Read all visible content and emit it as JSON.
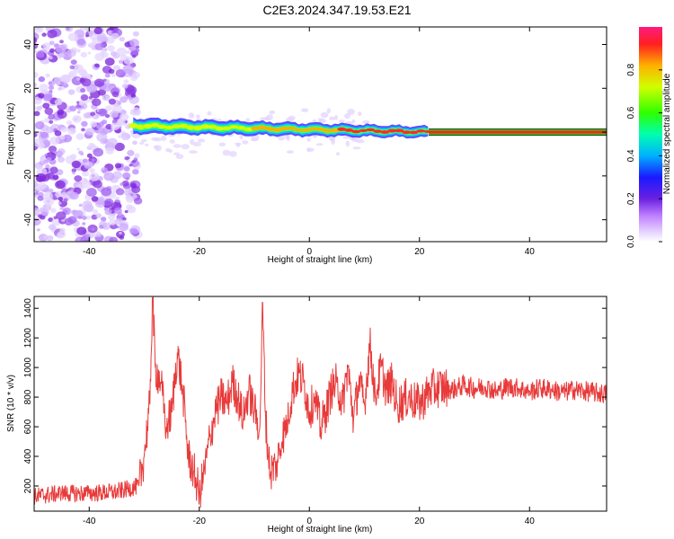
{
  "title": "C2E3.2024.347.19.53.E21",
  "colors": {
    "signal": "#e83a3a",
    "axis": "#000000",
    "frame_bg": "#ffffff"
  },
  "chart_data": [
    {
      "type": "heatmap",
      "xlabel": "Height of straight line (km)",
      "ylabel": "Frequency (Hz)",
      "xlim": [
        -50,
        54
      ],
      "ylim": [
        -50,
        48
      ],
      "x_ticks": [
        "-40",
        "-20",
        "0",
        "20",
        "40"
      ],
      "y_ticks": [
        "-40",
        "-20",
        "0",
        "20",
        "40"
      ],
      "colorbar": {
        "label": "Normalized spectral amplitude",
        "range": [
          0,
          1
        ],
        "ticks": [
          "0.0",
          "0.2",
          "0.4",
          "0.6",
          "0.8"
        ]
      },
      "regions": [
        {
          "description": "broadband noise",
          "x_range": [
            -50,
            -32
          ],
          "freq_range": [
            -50,
            48
          ],
          "amplitude": 0.1
        },
        {
          "description": "signal band",
          "x_range": [
            -32,
            54
          ],
          "freq_center": 0,
          "amplitude_range": [
            0.35,
            1.0
          ]
        }
      ]
    },
    {
      "type": "line",
      "xlabel": "Height of straight line (km)",
      "ylabel": "SNR (10 * v/v)",
      "xlim": [
        -50,
        54
      ],
      "ylim": [
        30,
        1480
      ],
      "x_ticks": [
        "-40",
        "-20",
        "0",
        "20",
        "40"
      ],
      "y_ticks": [
        "200",
        "400",
        "600",
        "800",
        "1000",
        "1200",
        "1400"
      ],
      "series": [
        {
          "x": [
            -50,
            -45,
            -40,
            -35,
            -31,
            -30,
            -29,
            -28.5,
            -28,
            -27,
            -26,
            -25,
            -24,
            -23,
            -22,
            -21,
            -20,
            -19,
            -18,
            -17,
            -16,
            -15,
            -14,
            -13,
            -12,
            -11,
            -10,
            -9,
            -8.5,
            -8,
            -7.5,
            -7,
            -6,
            -5,
            -4,
            -3,
            -2,
            -1,
            0,
            1,
            2,
            3,
            4,
            5,
            6,
            7,
            8,
            9,
            10,
            11,
            12,
            13,
            14,
            15,
            16,
            18,
            20,
            22,
            24,
            26,
            28,
            30,
            32,
            34,
            36,
            38,
            40,
            42,
            44,
            46,
            48,
            50,
            52,
            54
          ],
          "y": [
            130,
            150,
            150,
            160,
            200,
            400,
            750,
            1470,
            1000,
            900,
            600,
            700,
            1100,
            850,
            400,
            300,
            150,
            300,
            550,
            700,
            800,
            750,
            900,
            800,
            650,
            850,
            700,
            600,
            1440,
            700,
            400,
            300,
            350,
            500,
            650,
            850,
            950,
            900,
            700,
            800,
            600,
            700,
            850,
            900,
            750,
            1000,
            650,
            900,
            750,
            1160,
            800,
            1000,
            850,
            900,
            750,
            800,
            750,
            850,
            870,
            850,
            880,
            860,
            870,
            840,
            870,
            860,
            840,
            860,
            850,
            830,
            850,
            840,
            830,
            820
          ]
        }
      ]
    }
  ]
}
